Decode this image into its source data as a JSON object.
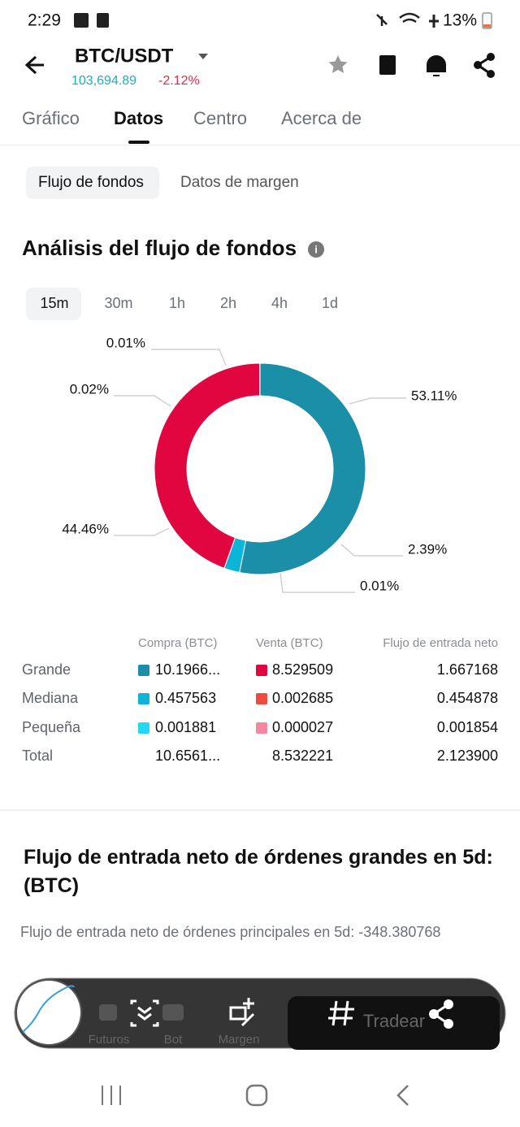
{
  "status_bar": {
    "time": "2:29",
    "battery": "13%"
  },
  "header": {
    "pair": "BTC/USDT",
    "price": "103,694.89",
    "change": "-2.12%"
  },
  "tabs": [
    "Gráfico",
    "Datos",
    "Centro",
    "Acerca de"
  ],
  "subtabs": [
    "Flujo de fondos",
    "Datos de margen"
  ],
  "section_title": "Análisis del flujo de fondos",
  "intervals": [
    "15m",
    "30m",
    "1h",
    "2h",
    "4h",
    "1d"
  ],
  "chart_data": {
    "type": "pie",
    "donut": true,
    "values": [
      53.11,
      2.39,
      0.01,
      44.46,
      0.02,
      0.01
    ],
    "value_labels": [
      "53.11%",
      "2.39%",
      "0.01%",
      "44.46%",
      "0.02%",
      "0.01%"
    ],
    "colors": [
      "#1b8fa8",
      "#0cb4d8",
      "#22d8f6",
      "#e1063f",
      "#ef4b3e",
      "#f7869f"
    ]
  },
  "table": {
    "headers": [
      "Compra (BTC)",
      "Venta (BTC)",
      "Flujo de entrada neto"
    ],
    "rows": [
      [
        "Grande",
        "10.1966...",
        "8.529509",
        "1.667168"
      ],
      [
        "Mediana",
        "0.457563",
        "0.002685",
        "0.454878"
      ],
      [
        "Pequeña",
        "0.001881",
        "0.000027",
        "0.001854"
      ],
      [
        "Total",
        "10.6561...",
        "8.532221",
        "2.123900"
      ]
    ]
  },
  "large_orders": {
    "title": "Flujo de entrada neto de órdenes grandes en 5d: (BTC)",
    "summary": "Flujo de entrada neto de órdenes principales en 5d: -348.380768"
  },
  "bottom_bar": {
    "items": [
      "Futuros",
      "Bot",
      "Margen"
    ],
    "trade": "Tradear"
  }
}
